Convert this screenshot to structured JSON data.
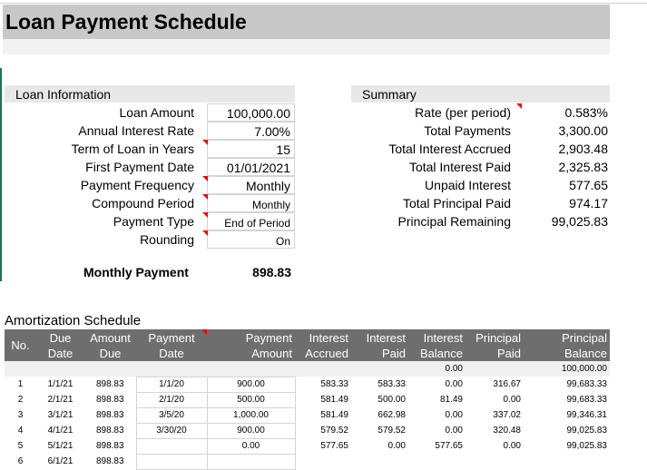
{
  "title": "Loan Payment Schedule",
  "loan_info": {
    "header": "Loan Information",
    "rows": [
      {
        "label": "Loan Amount",
        "value": "100,000.00"
      },
      {
        "label": "Annual Interest Rate",
        "value": "7.00%"
      },
      {
        "label": "Term of Loan in Years",
        "value": "15"
      },
      {
        "label": "First Payment Date",
        "value": "01/01/2021"
      },
      {
        "label": "Payment Frequency",
        "value": "Monthly"
      },
      {
        "label": "Compound Period",
        "value": "Monthly"
      },
      {
        "label": "Payment Type",
        "value": "End of Period"
      },
      {
        "label": "Rounding",
        "value": "On"
      }
    ],
    "monthly_payment_label": "Monthly Payment",
    "monthly_payment_value": "898.83"
  },
  "summary": {
    "header": "Summary",
    "rows": [
      {
        "label": "Rate (per period)",
        "value": "0.583%"
      },
      {
        "label": "Total Payments",
        "value": "3,300.00"
      },
      {
        "label": "Total Interest Accrued",
        "value": "2,903.48"
      },
      {
        "label": "Total Interest Paid",
        "value": "2,325.83"
      },
      {
        "label": "Unpaid Interest",
        "value": "577.65"
      },
      {
        "label": "Total Principal Paid",
        "value": "974.17"
      },
      {
        "label": "Principal Remaining",
        "value": "99,025.83"
      }
    ]
  },
  "amortization": {
    "title": "Amortization Schedule",
    "columns": [
      "No.",
      "Due Date",
      "Amount Due",
      "Payment Date",
      "Payment Amount",
      "Interest Accrued",
      "Interest Paid",
      "Interest Balance",
      "Principal Paid",
      "Principal Balance"
    ],
    "initial": {
      "interest_balance": "0.00",
      "principal_balance": "100,000.00"
    },
    "rows": [
      [
        "1",
        "1/1/21",
        "898.83",
        "1/1/20",
        "900.00",
        "583.33",
        "583.33",
        "0.00",
        "316.67",
        "99,683.33"
      ],
      [
        "2",
        "2/1/21",
        "898.83",
        "2/1/20",
        "500.00",
        "581.49",
        "500.00",
        "81.49",
        "0.00",
        "99,683.33"
      ],
      [
        "3",
        "3/1/21",
        "898.83",
        "3/5/20",
        "1,000.00",
        "581.49",
        "662.98",
        "0.00",
        "337.02",
        "99,346.31"
      ],
      [
        "4",
        "4/1/21",
        "898.83",
        "3/30/20",
        "900.00",
        "579.52",
        "579.52",
        "0.00",
        "320.48",
        "99,025.83"
      ],
      [
        "5",
        "5/1/21",
        "898.83",
        "",
        "0.00",
        "577.65",
        "0.00",
        "577.65",
        "0.00",
        "99,025.83"
      ],
      [
        "6",
        "6/1/21",
        "898.83",
        "",
        "",
        "",
        "",
        "",
        "",
        ""
      ]
    ]
  },
  "colors": {
    "title_band": "#c8c8c8",
    "table_header": "#6e6e6e",
    "comment_marker": "#e00000"
  }
}
